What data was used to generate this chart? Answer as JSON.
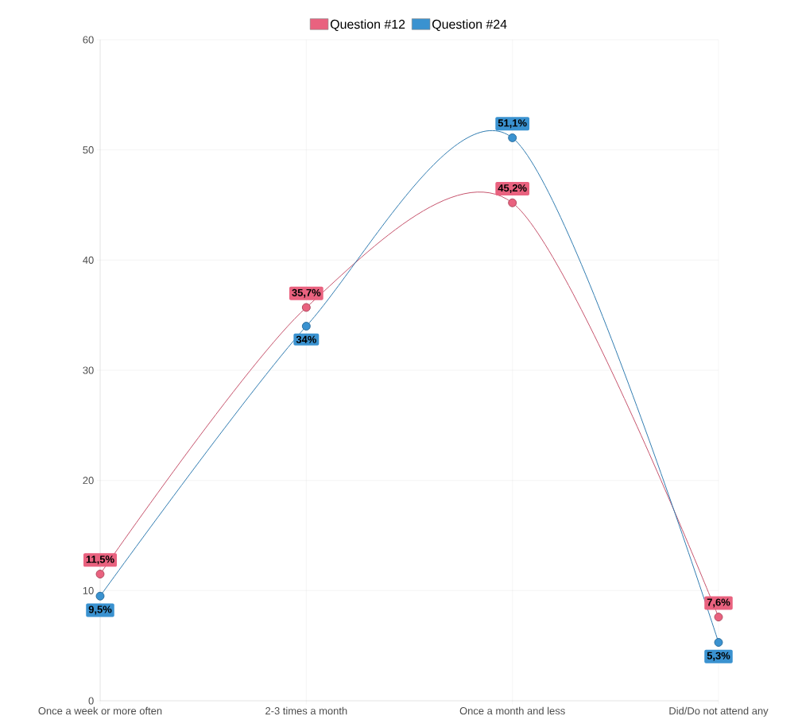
{
  "chart_data": {
    "type": "line",
    "categories": [
      "Once a week or more often",
      "2-3 times a month",
      "Once a month and less",
      "Did/Do not attend any"
    ],
    "series": [
      {
        "name": "Question #12",
        "color": "#e9627f",
        "values": [
          11.5,
          35.7,
          45.2,
          7.6
        ],
        "value_labels": [
          "11,5%",
          "35,7%",
          "45,2%",
          "7,6%"
        ]
      },
      {
        "name": "Question #24",
        "color": "#3a92d0",
        "values": [
          9.5,
          34,
          51.1,
          5.3
        ],
        "value_labels": [
          "9,5%",
          "34%",
          "51,1%",
          "5,3%"
        ]
      }
    ],
    "ylim": [
      0,
      60
    ],
    "yticks": [
      0,
      10,
      20,
      30,
      40,
      50,
      60
    ],
    "grid": true,
    "legend": "top",
    "marker": "circle"
  }
}
